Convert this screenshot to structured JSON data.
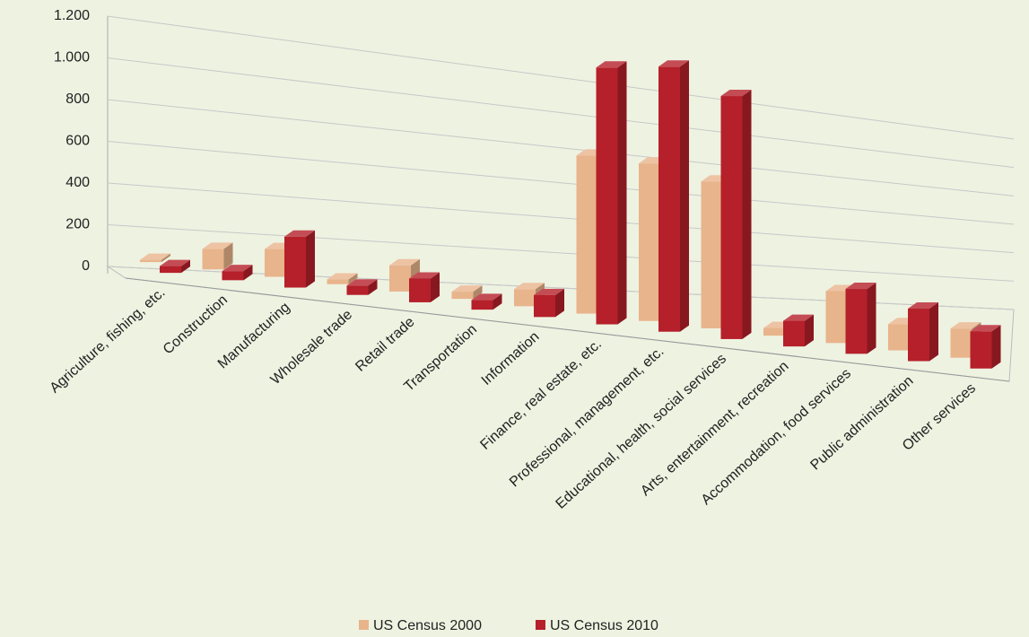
{
  "chart_data": {
    "type": "bar3d",
    "categories": [
      "Agriculture, fishing, etc.",
      "Construction",
      "Manufacturing",
      "Wholesale trade",
      "Retail trade",
      "Transportation",
      "Information",
      "Finance, real estate, etc.",
      "Professional, management, etc.",
      "Educational, health, social services",
      "Arts, entertainment, recreation",
      "Accommodation, food services",
      "Public administration",
      "Other services"
    ],
    "series": [
      {
        "name": "US Census 2000",
        "color": "#e8b48c",
        "values": [
          10,
          90,
          120,
          20,
          110,
          30,
          70,
          640,
          630,
          580,
          30,
          200,
          100,
          110
        ]
      },
      {
        "name": "US Census 2010",
        "color": "#b5202a",
        "values": [
          30,
          40,
          220,
          40,
          100,
          40,
          90,
          1040,
          1060,
          960,
          100,
          250,
          200,
          140
        ]
      }
    ],
    "ylim": [
      0,
      1200
    ],
    "yticks": [
      0,
      200,
      400,
      600,
      800,
      {
        "value": 1000,
        "label": "1.000"
      },
      {
        "value": 1200,
        "label": "1.200"
      }
    ],
    "grid": true,
    "legend": "bottom"
  }
}
